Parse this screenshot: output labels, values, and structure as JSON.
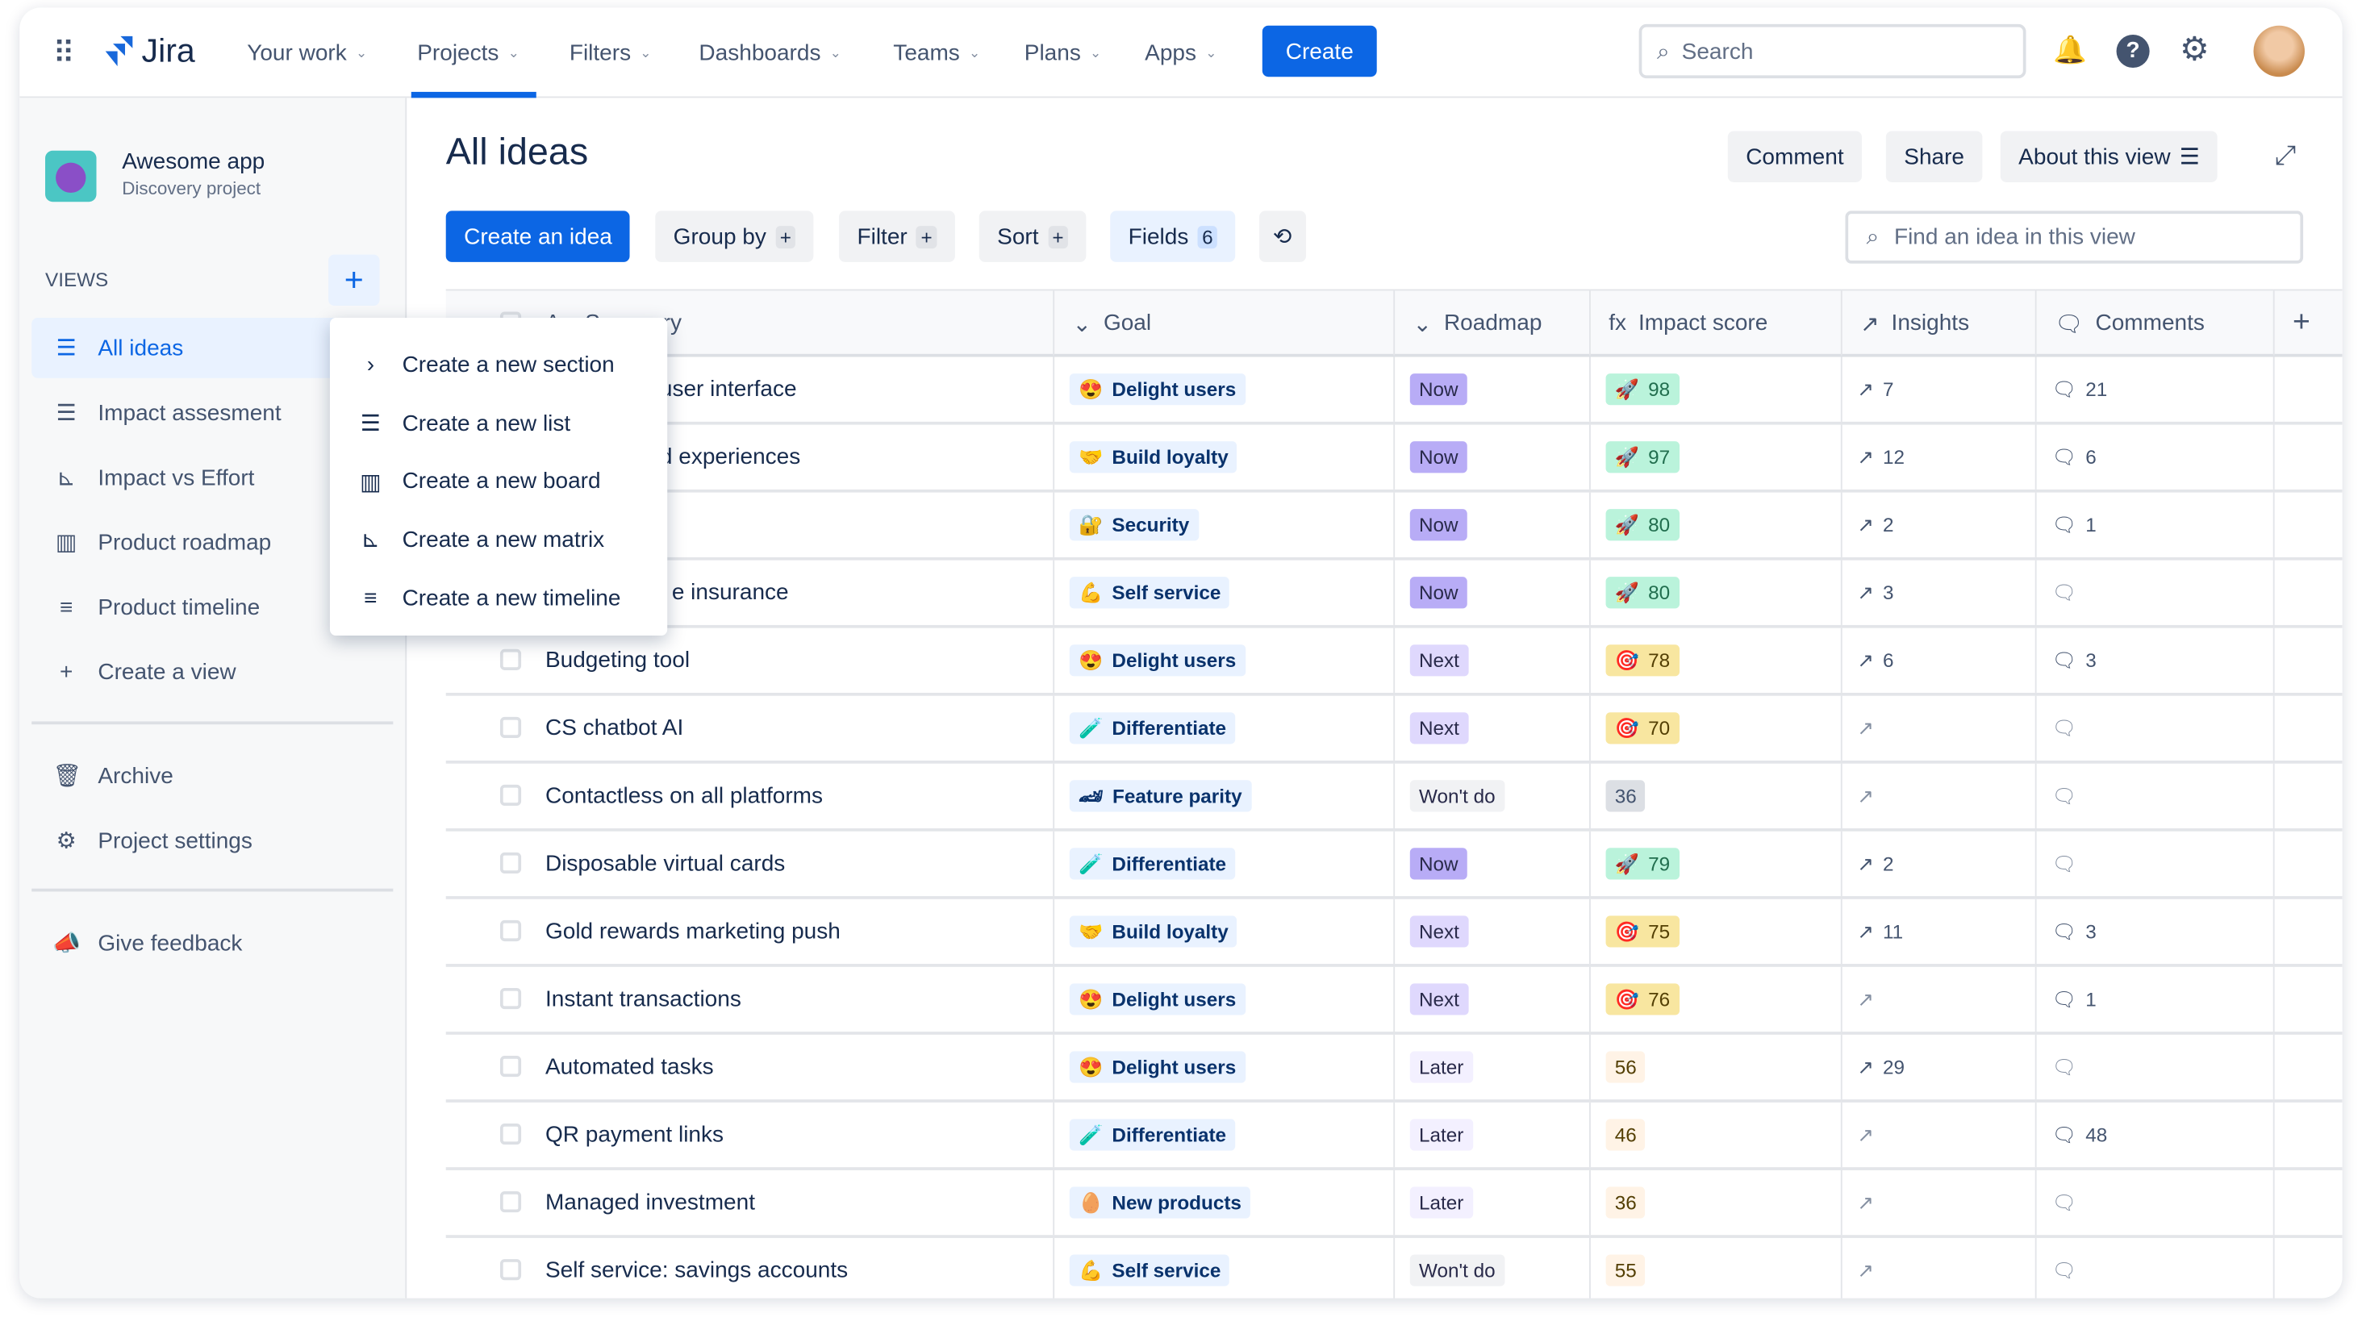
{
  "nav": {
    "app": "Jira",
    "items": [
      "Your work",
      "Projects",
      "Filters",
      "Dashboards",
      "Teams",
      "Plans",
      "Apps"
    ],
    "active": "Projects",
    "create": "Create",
    "search_placeholder": "Search"
  },
  "project": {
    "name": "Awesome app",
    "type": "Discovery project"
  },
  "sidebar": {
    "views_label": "VIEWS",
    "views": [
      {
        "label": "All ideas",
        "icon": "list-icon",
        "active": true
      },
      {
        "label": "Impact assesment",
        "icon": "list-icon"
      },
      {
        "label": "Impact vs Effort",
        "icon": "matrix-icon"
      },
      {
        "label": "Product roadmap",
        "icon": "board-icon"
      },
      {
        "label": "Product timeline",
        "icon": "timeline-icon"
      },
      {
        "label": "Create a view",
        "icon": "plus-icon"
      }
    ],
    "archive": "Archive",
    "settings": "Project settings",
    "feedback": "Give feedback"
  },
  "menu": {
    "items": [
      {
        "label": "Create a new section",
        "icon": "chevron-right-icon"
      },
      {
        "label": "Create a new list",
        "icon": "list-icon"
      },
      {
        "label": "Create a new board",
        "icon": "board-icon"
      },
      {
        "label": "Create a new matrix",
        "icon": "matrix-icon"
      },
      {
        "label": "Create a new timeline",
        "icon": "timeline-icon"
      }
    ]
  },
  "page": {
    "title": "All ideas",
    "comment": "Comment",
    "share": "Share",
    "about": "About this view",
    "create_idea": "Create an idea",
    "group_by": "Group by",
    "filter": "Filter",
    "sort": "Sort",
    "fields": "Fields",
    "fields_count": "6",
    "find_placeholder": "Find an idea in this view"
  },
  "table": {
    "columns": [
      "Summary",
      "Goal",
      "Roadmap",
      "Impact score",
      "Insights",
      "Comments"
    ],
    "rows": [
      {
        "summary": "user interface",
        "clipped": true,
        "goal": "Delight users",
        "goal_emoji": "😍",
        "roadmap": "Now",
        "score": "98",
        "score_tier": "high",
        "insights": "7",
        "comments": "21"
      },
      {
        "summary": "d experiences",
        "clipped": true,
        "goal": "Build loyalty",
        "goal_emoji": "🤝",
        "roadmap": "Now",
        "score": "97",
        "score_tier": "high",
        "insights": "12",
        "comments": "6"
      },
      {
        "summary": "",
        "clipped": true,
        "goal": "Security",
        "goal_emoji": "🔐",
        "roadmap": "Now",
        "score": "80",
        "score_tier": "high",
        "insights": "2",
        "comments": "1"
      },
      {
        "summary": "e insurance",
        "clipped": true,
        "goal": "Self service",
        "goal_emoji": "💪",
        "roadmap": "Now",
        "score": "80",
        "score_tier": "high",
        "insights": "3",
        "comments": ""
      },
      {
        "summary": "Budgeting tool",
        "goal": "Delight users",
        "goal_emoji": "😍",
        "roadmap": "Next",
        "score": "78",
        "score_tier": "mid",
        "insights": "6",
        "comments": "3"
      },
      {
        "summary": "CS chatbot AI",
        "goal": "Differentiate",
        "goal_emoji": "🧪",
        "roadmap": "Next",
        "score": "70",
        "score_tier": "mid",
        "insights": "",
        "comments": ""
      },
      {
        "summary": "Contactless on all platforms",
        "goal": "Feature parity",
        "goal_emoji": "🏎",
        "roadmap": "Won't do",
        "score": "36",
        "score_tier": "none",
        "insights": "",
        "comments": ""
      },
      {
        "summary": "Disposable virtual cards",
        "goal": "Differentiate",
        "goal_emoji": "🧪",
        "roadmap": "Now",
        "score": "79",
        "score_tier": "high",
        "insights": "2",
        "comments": ""
      },
      {
        "summary": "Gold rewards marketing push",
        "goal": "Build loyalty",
        "goal_emoji": "🤝",
        "roadmap": "Next",
        "score": "75",
        "score_tier": "mid",
        "insights": "11",
        "comments": "3"
      },
      {
        "summary": "Instant transactions",
        "goal": "Delight users",
        "goal_emoji": "😍",
        "roadmap": "Next",
        "score": "76",
        "score_tier": "mid",
        "insights": "",
        "comments": "1"
      },
      {
        "summary": "Automated tasks",
        "goal": "Delight users",
        "goal_emoji": "😍",
        "roadmap": "Later",
        "score": "56",
        "score_tier": "low",
        "insights": "29",
        "comments": ""
      },
      {
        "summary": "QR payment links",
        "goal": "Differentiate",
        "goal_emoji": "🧪",
        "roadmap": "Later",
        "score": "46",
        "score_tier": "low",
        "insights": "",
        "comments": "48"
      },
      {
        "summary": "Managed investment",
        "goal": "New products",
        "goal_emoji": "🥚",
        "roadmap": "Later",
        "score": "36",
        "score_tier": "low",
        "insights": "",
        "comments": ""
      },
      {
        "summary": "Self service: savings accounts",
        "goal": "Self service",
        "goal_emoji": "💪",
        "roadmap": "Won't do",
        "score": "55",
        "score_tier": "low",
        "insights": "",
        "comments": ""
      }
    ]
  },
  "colors": {
    "accent": "#0c66e4",
    "roadmap": {
      "Now": "#b8acf6",
      "Next": "#dfd8fd",
      "Later": "#f3f0ff",
      "Won't do": "#f1f2f4"
    },
    "score": {
      "high": "#baf3db",
      "mid": "#f8e6a0",
      "none": "#dcdfe4",
      "low": "#fff3e6"
    }
  }
}
